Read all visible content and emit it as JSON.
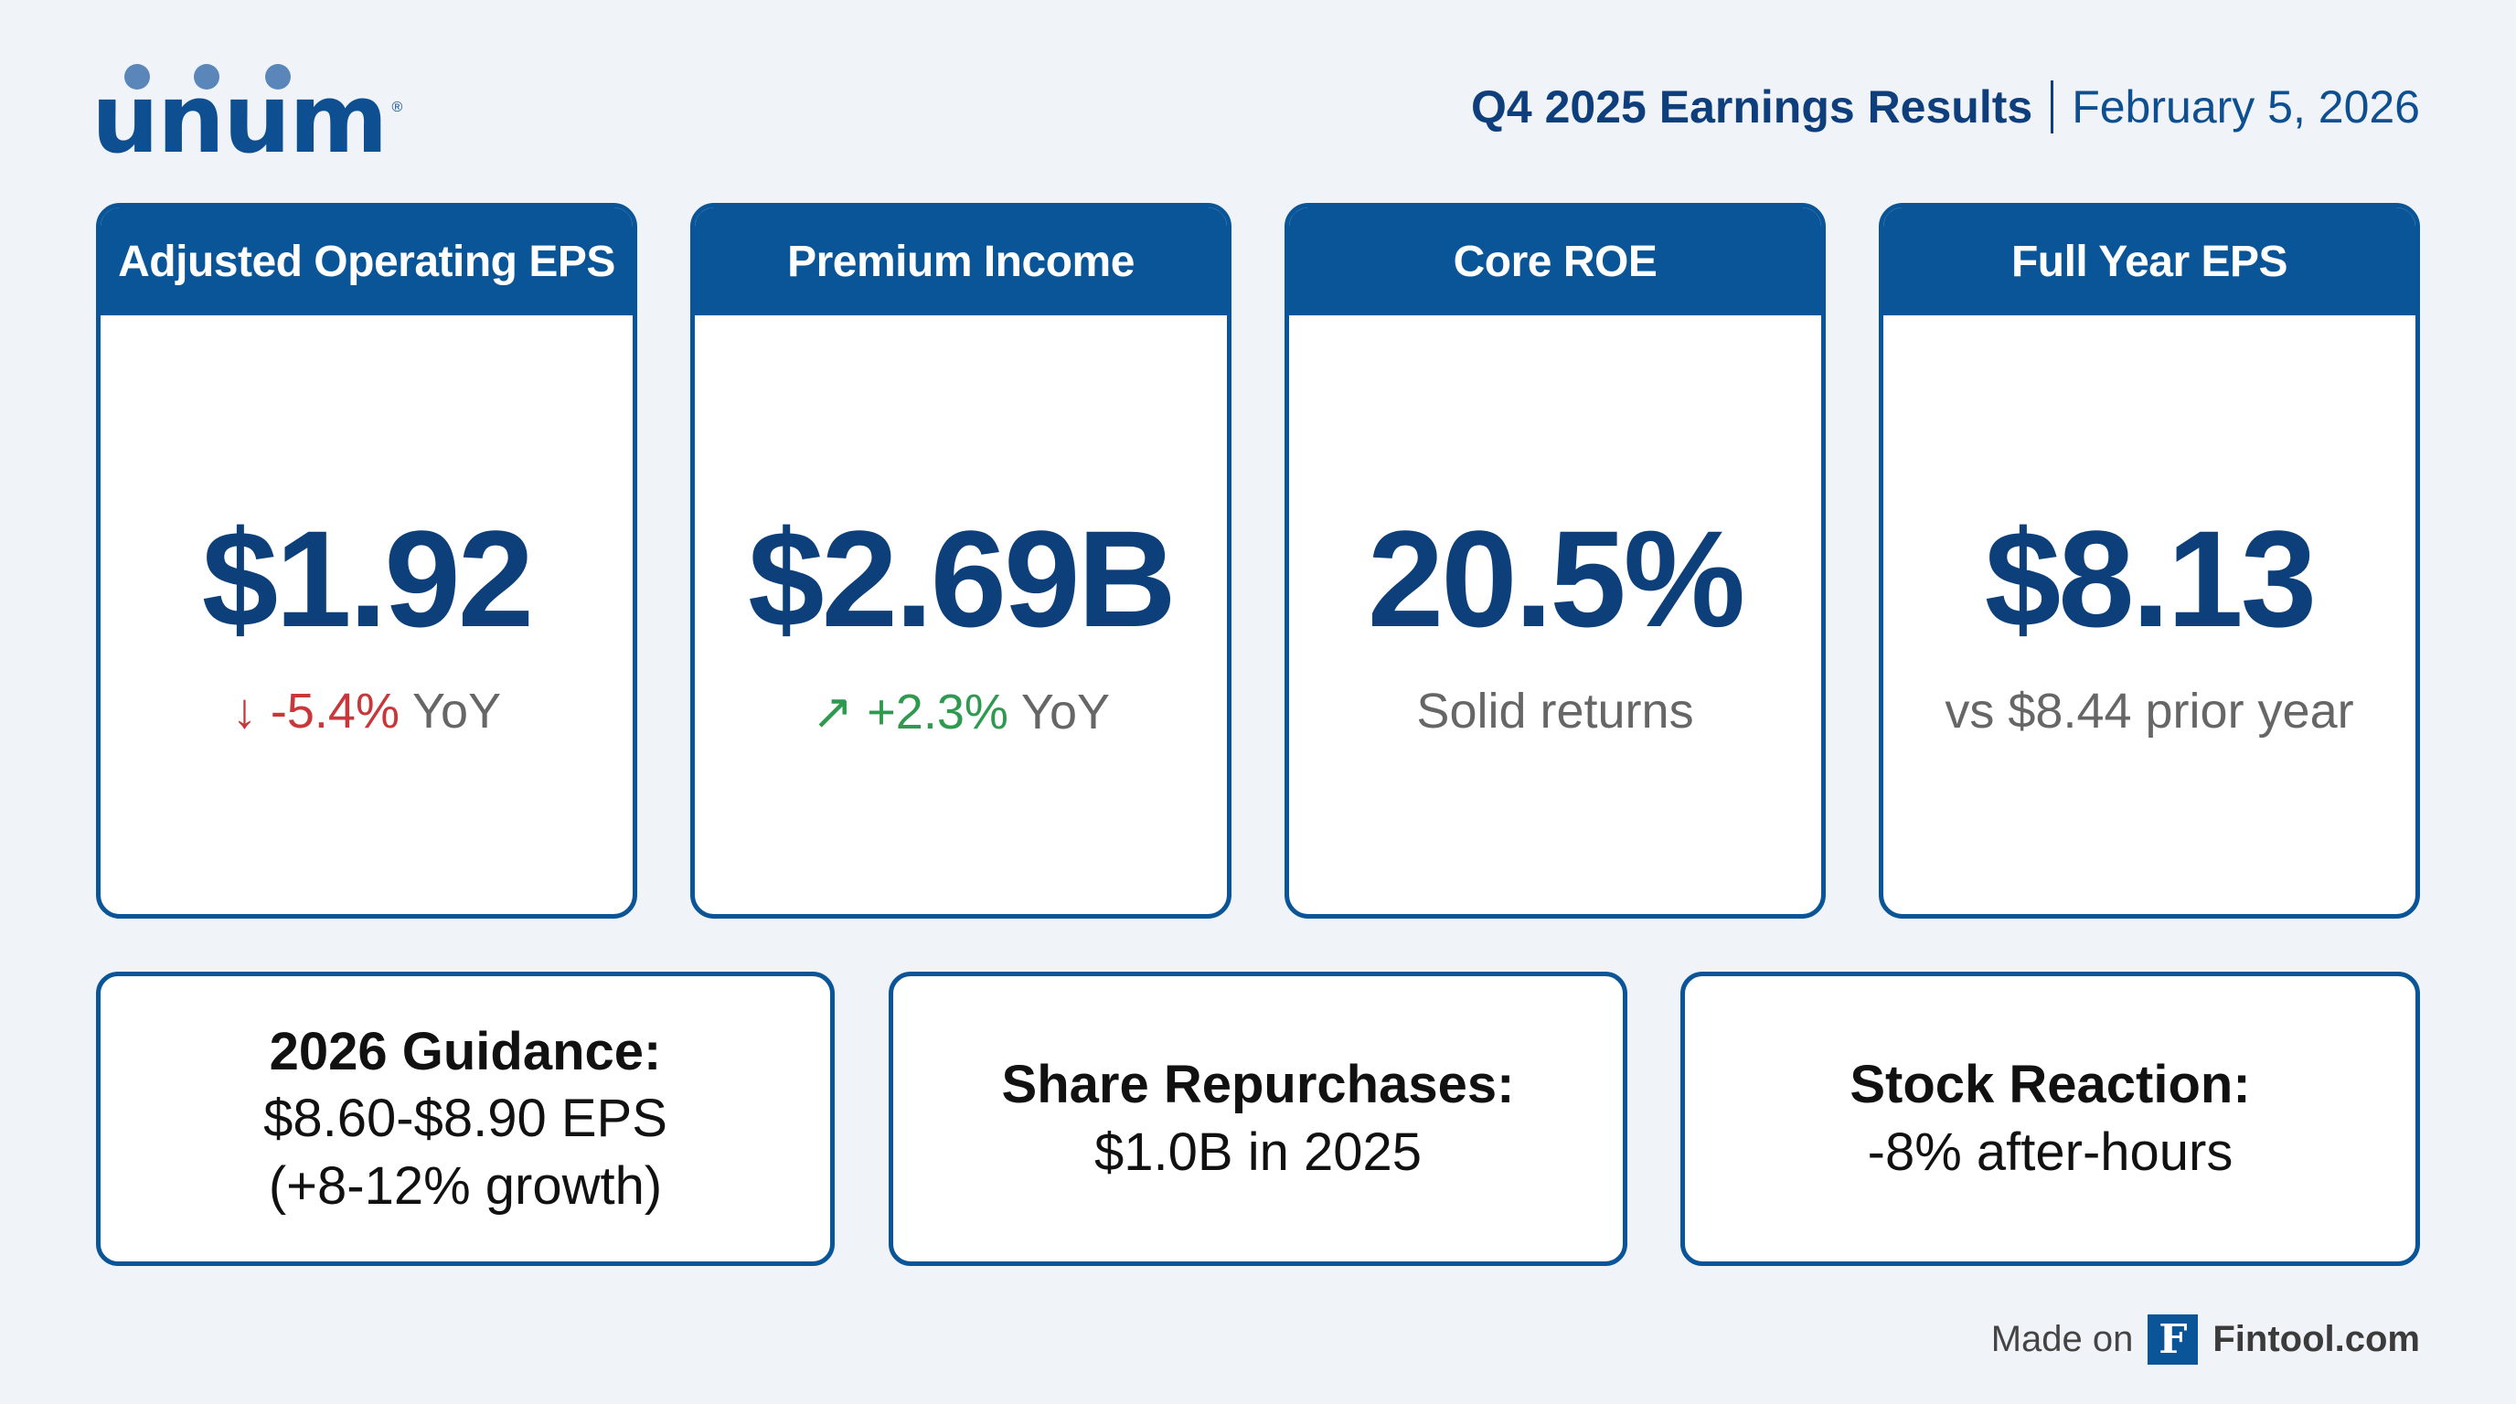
{
  "logo": {
    "text": "unum"
  },
  "header": {
    "title": "Q4 2025 Earnings Results",
    "date": "February 5, 2026"
  },
  "cards": [
    {
      "title": "Adjusted Operating EPS",
      "value": "$1.92",
      "arrow": "↓",
      "change": "-5.4%",
      "suffix": " YoY"
    },
    {
      "title": "Premium Income",
      "value": "$2.69B",
      "arrow": "↗",
      "change": "+2.3%",
      "suffix": " YoY"
    },
    {
      "title": "Core ROE",
      "value": "20.5%",
      "note": "Solid returns"
    },
    {
      "title": "Full Year EPS",
      "value": "$8.13",
      "note": "vs $8.44 prior year"
    }
  ],
  "boxes": [
    {
      "title": "2026 Guidance:",
      "line1": "$8.60-$8.90 EPS",
      "line2": "(+8-12% growth)"
    },
    {
      "title": "Share Repurchases:",
      "line1": "$1.0B in 2025"
    },
    {
      "title": "Stock Reaction:",
      "line1": "-8% after-hours"
    }
  ],
  "footer": {
    "made_on": "Made on",
    "brand_letter": "F",
    "brand": "Fintool.com"
  },
  "colors": {
    "primary": "#0a5598",
    "value": "#0d3f7a",
    "down": "#c8373a",
    "up": "#2e9a4f"
  }
}
